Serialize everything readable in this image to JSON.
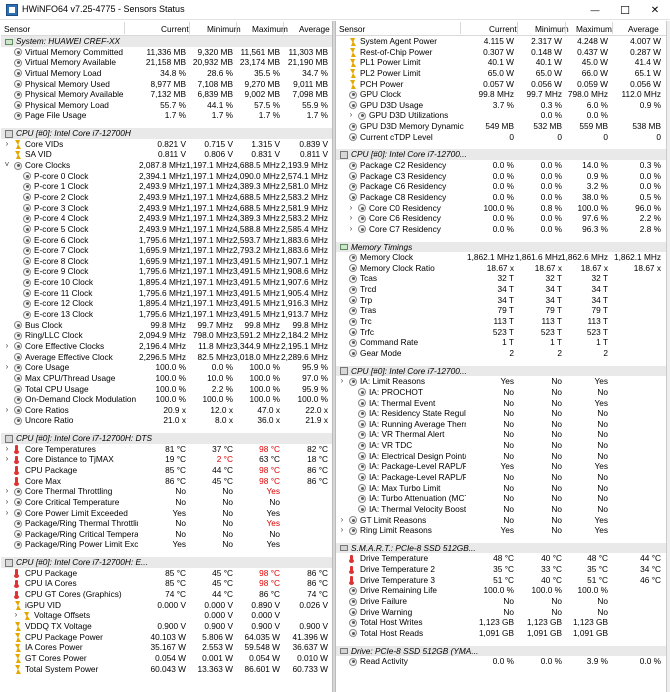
{
  "window": {
    "title": "HWiNFO64 v7.25-4775 - Sensors Status",
    "minimize": "—",
    "maximize": "☐",
    "close": "✕"
  },
  "header": {
    "sensor": "Sensor",
    "current": "Current",
    "minimum": "Minimum",
    "maximum": "Maximum",
    "average": "Average"
  },
  "colors": {
    "section_bg": "#e9e9e9",
    "alert": "#e00000",
    "voltage_icon": "#e6a800",
    "thermo_icon": "#d33"
  },
  "left": [
    {
      "type": "section",
      "icon": "mem",
      "label": "System: HUAWEI CREF-XX"
    },
    {
      "icon": "sens",
      "label": "Virtual Memory Committed",
      "cur": "11,336 MB",
      "min": "9,320 MB",
      "max": "11,561 MB",
      "avg": "11,303 MB"
    },
    {
      "icon": "sens",
      "label": "Virtual Memory Available",
      "cur": "21,158 MB",
      "min": "20,932 MB",
      "max": "23,174 MB",
      "avg": "21,190 MB"
    },
    {
      "icon": "sens",
      "label": "Virtual Memory Load",
      "cur": "34.8 %",
      "min": "28.6 %",
      "max": "35.5 %",
      "avg": "34.7 %"
    },
    {
      "icon": "sens",
      "label": "Physical Memory Used",
      "cur": "8,977 MB",
      "min": "7,108 MB",
      "max": "9,270 MB",
      "avg": "9,011 MB"
    },
    {
      "icon": "sens",
      "label": "Physical Memory Available",
      "cur": "7,132 MB",
      "min": "6,839 MB",
      "max": "9,002 MB",
      "avg": "7,098 MB"
    },
    {
      "icon": "sens",
      "label": "Physical Memory Load",
      "cur": "55.7 %",
      "min": "44.1 %",
      "max": "57.5 %",
      "avg": "55.9 %"
    },
    {
      "icon": "sens",
      "label": "Page File Usage",
      "cur": "1.7 %",
      "min": "1.7 %",
      "max": "1.7 %",
      "avg": "1.7 %"
    },
    {
      "type": "gap"
    },
    {
      "type": "section",
      "icon": "cpu",
      "label": "CPU [#0]: Intel Core i7-12700H"
    },
    {
      "exp": ">",
      "icon": "volt",
      "label": "Core VIDs",
      "cur": "0.821 V",
      "min": "0.715 V",
      "max": "1.315 V",
      "avg": "0.839 V"
    },
    {
      "icon": "volt",
      "label": "SA VID",
      "cur": "0.811 V",
      "min": "0.806 V",
      "max": "0.831 V",
      "avg": "0.811 V"
    },
    {
      "exp": "v",
      "icon": "sens",
      "label": "Core Clocks",
      "cur": "2,087.8 MHz",
      "min": "1,197.1 MHz",
      "max": "4,688.5 MHz",
      "avg": "2,193.9 MHz"
    },
    {
      "indent": 1,
      "icon": "sens",
      "label": "P-core 0 Clock",
      "cur": "2,394.1 MHz",
      "min": "1,197.1 MHz",
      "max": "4,090.0 MHz",
      "avg": "2,574.1 MHz"
    },
    {
      "indent": 1,
      "icon": "sens",
      "label": "P-core 1 Clock",
      "cur": "2,493.9 MHz",
      "min": "1,197.1 MHz",
      "max": "4,389.3 MHz",
      "avg": "2,581.0 MHz"
    },
    {
      "indent": 1,
      "icon": "sens",
      "label": "P-core 2 Clock",
      "cur": "2,493.9 MHz",
      "min": "1,197.1 MHz",
      "max": "4,688.5 MHz",
      "avg": "2,583.2 MHz"
    },
    {
      "indent": 1,
      "icon": "sens",
      "label": "P-core 3 Clock",
      "cur": "2,493.9 MHz",
      "min": "1,197.1 MHz",
      "max": "4,688.5 MHz",
      "avg": "2,581.9 MHz"
    },
    {
      "indent": 1,
      "icon": "sens",
      "label": "P-core 4 Clock",
      "cur": "2,493.9 MHz",
      "min": "1,197.1 MHz",
      "max": "4,389.3 MHz",
      "avg": "2,583.2 MHz"
    },
    {
      "indent": 1,
      "icon": "sens",
      "label": "P-core 5 Clock",
      "cur": "2,493.9 MHz",
      "min": "1,197.1 MHz",
      "max": "4,588.8 MHz",
      "avg": "2,585.4 MHz"
    },
    {
      "indent": 1,
      "icon": "sens",
      "label": "E-core 6 Clock",
      "cur": "1,795.6 MHz",
      "min": "1,197.1 MHz",
      "max": "2,593.7 MHz",
      "avg": "1,883.6 MHz"
    },
    {
      "indent": 1,
      "icon": "sens",
      "label": "E-core 7 Clock",
      "cur": "1,695.9 MHz",
      "min": "1,197.1 MHz",
      "max": "2,793.2 MHz",
      "avg": "1,883.6 MHz"
    },
    {
      "indent": 1,
      "icon": "sens",
      "label": "E-core 8 Clock",
      "cur": "1,695.9 MHz",
      "min": "1,197.1 MHz",
      "max": "3,491.5 MHz",
      "avg": "1,907.1 MHz"
    },
    {
      "indent": 1,
      "icon": "sens",
      "label": "E-core 9 Clock",
      "cur": "1,795.6 MHz",
      "min": "1,197.1 MHz",
      "max": "3,491.5 MHz",
      "avg": "1,908.6 MHz"
    },
    {
      "indent": 1,
      "icon": "sens",
      "label": "E-core 10 Clock",
      "cur": "1,895.4 MHz",
      "min": "1,197.1 MHz",
      "max": "3,491.5 MHz",
      "avg": "1,907.6 MHz"
    },
    {
      "indent": 1,
      "icon": "sens",
      "label": "E-core 11 Clock",
      "cur": "1,795.6 MHz",
      "min": "1,197.1 MHz",
      "max": "3,491.5 MHz",
      "avg": "1,905.4 MHz"
    },
    {
      "indent": 1,
      "icon": "sens",
      "label": "E-core 12 Clock",
      "cur": "1,895.4 MHz",
      "min": "1,197.1 MHz",
      "max": "3,491.5 MHz",
      "avg": "1,916.3 MHz"
    },
    {
      "indent": 1,
      "icon": "sens",
      "label": "E-core 13 Clock",
      "cur": "1,795.6 MHz",
      "min": "1,197.1 MHz",
      "max": "3,491.5 MHz",
      "avg": "1,913.7 MHz"
    },
    {
      "icon": "sens",
      "label": "Bus Clock",
      "cur": "99.8 MHz",
      "min": "99.7 MHz",
      "max": "99.8 MHz",
      "avg": "99.8 MHz"
    },
    {
      "icon": "sens",
      "label": "Ring/LLC Clock",
      "cur": "2,094.9 MHz",
      "min": "798.0 MHz",
      "max": "3,591.2 MHz",
      "avg": "2,184.2 MHz"
    },
    {
      "exp": ">",
      "icon": "sens",
      "label": "Core Effective Clocks",
      "cur": "2,196.4 MHz",
      "min": "11.8 MHz",
      "max": "3,344.9 MHz",
      "avg": "2,195.1 MHz"
    },
    {
      "icon": "sens",
      "label": "Average Effective Clock",
      "cur": "2,296.5 MHz",
      "min": "82.5 MHz",
      "max": "3,018.0 MHz",
      "avg": "2,289.6 MHz"
    },
    {
      "exp": ">",
      "icon": "sens",
      "label": "Core Usage",
      "cur": "100.0 %",
      "min": "0.0 %",
      "max": "100.0 %",
      "avg": "95.9 %"
    },
    {
      "icon": "sens",
      "label": "Max CPU/Thread Usage",
      "cur": "100.0 %",
      "min": "10.0 %",
      "max": "100.0 %",
      "avg": "97.0 %"
    },
    {
      "icon": "sens",
      "label": "Total CPU Usage",
      "cur": "100.0 %",
      "min": "2.2 %",
      "max": "100.0 %",
      "avg": "95.9 %"
    },
    {
      "icon": "sens",
      "label": "On-Demand Clock Modulation",
      "cur": "100.0 %",
      "min": "100.0 %",
      "max": "100.0 %",
      "avg": "100.0 %"
    },
    {
      "exp": ">",
      "icon": "sens",
      "label": "Core Ratios",
      "cur": "20.9 x",
      "min": "12.0 x",
      "max": "47.0 x",
      "avg": "22.0 x"
    },
    {
      "icon": "sens",
      "label": "Uncore Ratio",
      "cur": "21.0 x",
      "min": "8.0 x",
      "max": "36.0 x",
      "avg": "21.9 x"
    },
    {
      "type": "gap"
    },
    {
      "type": "section",
      "icon": "cpu",
      "label": "CPU [#0]: Intel Core i7-12700H: DTS"
    },
    {
      "exp": ">",
      "icon": "therm",
      "label": "Core Temperatures",
      "cur": "81 °C",
      "min": "37 °C",
      "max": "98 °C",
      "avg": "82 °C",
      "maxRed": true
    },
    {
      "exp": ">",
      "icon": "therm",
      "label": "Core Distance to TjMAX",
      "cur": "19 °C",
      "min": "2 °C",
      "max": "63 °C",
      "avg": "18 °C",
      "minRed": true
    },
    {
      "icon": "therm",
      "label": "CPU Package",
      "cur": "85 °C",
      "min": "44 °C",
      "max": "98 °C",
      "avg": "86 °C",
      "maxRed": true
    },
    {
      "icon": "therm",
      "label": "Core Max",
      "cur": "86 °C",
      "min": "45 °C",
      "max": "98 °C",
      "avg": "86 °C",
      "maxRed": true
    },
    {
      "exp": ">",
      "icon": "sens",
      "label": "Core Thermal Throttling",
      "cur": "No",
      "min": "No",
      "max": "Yes",
      "avg": "",
      "maxRed": true
    },
    {
      "exp": ">",
      "icon": "sens",
      "label": "Core Critical Temperature",
      "cur": "No",
      "min": "No",
      "max": "No",
      "avg": ""
    },
    {
      "exp": ">",
      "icon": "sens",
      "label": "Core Power Limit Exceeded",
      "cur": "Yes",
      "min": "No",
      "max": "Yes",
      "avg": ""
    },
    {
      "icon": "sens",
      "label": "Package/Ring Thermal Throttling",
      "cur": "No",
      "min": "No",
      "max": "Yes",
      "avg": "",
      "maxRed": true
    },
    {
      "icon": "sens",
      "label": "Package/Ring Critical Temperature",
      "cur": "No",
      "min": "No",
      "max": "No",
      "avg": ""
    },
    {
      "icon": "sens",
      "label": "Package/Ring Power Limit Exceeded",
      "cur": "Yes",
      "min": "No",
      "max": "Yes",
      "avg": ""
    },
    {
      "type": "gap"
    },
    {
      "type": "section",
      "icon": "cpu",
      "label": "CPU [#0]: Intel Core i7-12700H: E..."
    },
    {
      "icon": "therm",
      "label": "CPU Package",
      "cur": "85 °C",
      "min": "45 °C",
      "max": "98 °C",
      "avg": "86 °C",
      "maxRed": true
    },
    {
      "icon": "therm",
      "label": "CPU IA Cores",
      "cur": "85 °C",
      "min": "45 °C",
      "max": "98 °C",
      "avg": "86 °C",
      "maxRed": true
    },
    {
      "icon": "therm",
      "label": "CPU GT Cores (Graphics)",
      "cur": "74 °C",
      "min": "44 °C",
      "max": "86 °C",
      "avg": "74 °C"
    },
    {
      "icon": "volt",
      "label": "iGPU VID",
      "cur": "0.000 V",
      "min": "0.000 V",
      "max": "0.890 V",
      "avg": "0.026 V"
    },
    {
      "exp": ">",
      "icon": "volt",
      "indent": 1,
      "label": "Voltage Offsets",
      "cur": "",
      "min": "0.000 V",
      "max": "0.000 V",
      "avg": ""
    },
    {
      "icon": "volt",
      "label": "VDDQ TX Voltage",
      "cur": "0.900 V",
      "min": "0.900 V",
      "max": "0.900 V",
      "avg": "0.900 V"
    },
    {
      "icon": "volt",
      "label": "CPU Package Power",
      "cur": "40.103 W",
      "min": "5.806 W",
      "max": "64.035 W",
      "avg": "41.396 W"
    },
    {
      "icon": "volt",
      "label": "IA Cores Power",
      "cur": "35.167 W",
      "min": "2.553 W",
      "max": "59.548 W",
      "avg": "36.637 W"
    },
    {
      "icon": "volt",
      "label": "GT Cores Power",
      "cur": "0.054 W",
      "min": "0.001 W",
      "max": "0.054 W",
      "avg": "0.010 W"
    },
    {
      "icon": "volt",
      "label": "Total System Power",
      "cur": "60.043 W",
      "min": "13.363 W",
      "max": "86.601 W",
      "avg": "60.733 W"
    }
  ],
  "right": [
    {
      "icon": "volt",
      "label": "System Agent Power",
      "cur": "4.115 W",
      "min": "2.317 W",
      "max": "4.248 W",
      "avg": "4.007 W"
    },
    {
      "icon": "volt",
      "label": "Rest-of-Chip Power",
      "cur": "0.307 W",
      "min": "0.148 W",
      "max": "0.437 W",
      "avg": "0.287 W"
    },
    {
      "icon": "volt",
      "label": "PL1 Power Limit",
      "cur": "40.1 W",
      "min": "40.1 W",
      "max": "45.0 W",
      "avg": "41.4 W"
    },
    {
      "icon": "volt",
      "label": "PL2 Power Limit",
      "cur": "65.0 W",
      "min": "65.0 W",
      "max": "66.0 W",
      "avg": "65.1 W"
    },
    {
      "icon": "volt",
      "label": "PCH Power",
      "cur": "0.057 W",
      "min": "0.056 W",
      "max": "0.059 W",
      "avg": "0.056 W"
    },
    {
      "icon": "sens",
      "label": "GPU Clock",
      "cur": "99.8 MHz",
      "min": "99.7 MHz",
      "max": "798.0 MHz",
      "avg": "112.0 MHz"
    },
    {
      "icon": "sens",
      "label": "GPU D3D Usage",
      "cur": "3.7 %",
      "min": "0.3 %",
      "max": "6.0 %",
      "avg": "0.9 %"
    },
    {
      "exp": ">",
      "indent": 1,
      "icon": "sens",
      "label": "GPU D3D Utilizations",
      "cur": "",
      "min": "0.0 %",
      "max": "0.0 %",
      "avg": ""
    },
    {
      "icon": "sens",
      "label": "GPU D3D Memory Dynamic",
      "cur": "549 MB",
      "min": "532 MB",
      "max": "559 MB",
      "avg": "538 MB"
    },
    {
      "icon": "sens",
      "label": "Current cTDP Level",
      "cur": "0",
      "min": "0",
      "max": "0",
      "avg": "0"
    },
    {
      "type": "gap"
    },
    {
      "type": "section",
      "icon": "cpu",
      "label": "CPU [#0]: Intel Core i7-12700..."
    },
    {
      "icon": "sens",
      "label": "Package C2 Residency",
      "cur": "0.0 %",
      "min": "0.0 %",
      "max": "14.0 %",
      "avg": "0.3 %"
    },
    {
      "icon": "sens",
      "label": "Package C3 Residency",
      "cur": "0.0 %",
      "min": "0.0 %",
      "max": "0.9 %",
      "avg": "0.0 %"
    },
    {
      "icon": "sens",
      "label": "Package C6 Residency",
      "cur": "0.0 %",
      "min": "0.0 %",
      "max": "3.2 %",
      "avg": "0.0 %"
    },
    {
      "icon": "sens",
      "label": "Package C8 Residency",
      "cur": "0.0 %",
      "min": "0.0 %",
      "max": "38.0 %",
      "avg": "0.5 %"
    },
    {
      "exp": ">",
      "indent": 1,
      "icon": "sens",
      "label": "Core C0 Residency",
      "cur": "100.0 %",
      "min": "0.8 %",
      "max": "100.0 %",
      "avg": "96.0 %"
    },
    {
      "exp": ">",
      "indent": 1,
      "icon": "sens",
      "label": "Core C6 Residency",
      "cur": "0.0 %",
      "min": "0.0 %",
      "max": "97.6 %",
      "avg": "2.2 %"
    },
    {
      "exp": ">",
      "indent": 1,
      "icon": "sens",
      "label": "Core C7 Residency",
      "cur": "0.0 %",
      "min": "0.0 %",
      "max": "96.3 %",
      "avg": "2.8 %"
    },
    {
      "type": "gap"
    },
    {
      "type": "section",
      "icon": "mem",
      "label": "Memory Timings"
    },
    {
      "icon": "sens",
      "label": "Memory Clock",
      "cur": "1,862.1 MHz",
      "min": "1,861.6 MHz",
      "max": "1,862.6 MHz",
      "avg": "1,862.1 MHz"
    },
    {
      "icon": "sens",
      "label": "Memory Clock Ratio",
      "cur": "18.67 x",
      "min": "18.67 x",
      "max": "18.67 x",
      "avg": "18.67 x"
    },
    {
      "icon": "sens",
      "label": "Tcas",
      "cur": "32 T",
      "min": "32 T",
      "max": "32 T",
      "avg": ""
    },
    {
      "icon": "sens",
      "label": "Trcd",
      "cur": "34 T",
      "min": "34 T",
      "max": "34 T",
      "avg": ""
    },
    {
      "icon": "sens",
      "label": "Trp",
      "cur": "34 T",
      "min": "34 T",
      "max": "34 T",
      "avg": ""
    },
    {
      "icon": "sens",
      "label": "Tras",
      "cur": "79 T",
      "min": "79 T",
      "max": "79 T",
      "avg": ""
    },
    {
      "icon": "sens",
      "label": "Trc",
      "cur": "113 T",
      "min": "113 T",
      "max": "113 T",
      "avg": ""
    },
    {
      "icon": "sens",
      "label": "Trfc",
      "cur": "523 T",
      "min": "523 T",
      "max": "523 T",
      "avg": ""
    },
    {
      "icon": "sens",
      "label": "Command Rate",
      "cur": "1 T",
      "min": "1 T",
      "max": "1 T",
      "avg": ""
    },
    {
      "icon": "sens",
      "label": "Gear Mode",
      "cur": "2",
      "min": "2",
      "max": "2",
      "avg": ""
    },
    {
      "type": "gap"
    },
    {
      "type": "section",
      "icon": "cpu",
      "label": "CPU [#0]: Intel Core i7-12700..."
    },
    {
      "exp": ">",
      "icon": "sens",
      "label": "IA: Limit Reasons",
      "cur": "Yes",
      "min": "No",
      "max": "Yes",
      "avg": ""
    },
    {
      "indent": 1,
      "icon": "sens",
      "label": "IA: PROCHOT",
      "cur": "No",
      "min": "No",
      "max": "No",
      "avg": ""
    },
    {
      "indent": 1,
      "icon": "sens",
      "label": "IA: Thermal Event",
      "cur": "No",
      "min": "No",
      "max": "Yes",
      "avg": ""
    },
    {
      "indent": 1,
      "icon": "sens",
      "label": "IA: Residency State Regula...",
      "cur": "No",
      "min": "No",
      "max": "No",
      "avg": ""
    },
    {
      "indent": 1,
      "icon": "sens",
      "label": "IA: Running Average Therm...",
      "cur": "No",
      "min": "No",
      "max": "No",
      "avg": ""
    },
    {
      "indent": 1,
      "icon": "sens",
      "label": "IA: VR Thermal Alert",
      "cur": "No",
      "min": "No",
      "max": "No",
      "avg": ""
    },
    {
      "indent": 1,
      "icon": "sens",
      "label": "IA: VR TDC",
      "cur": "No",
      "min": "No",
      "max": "No",
      "avg": ""
    },
    {
      "indent": 1,
      "icon": "sens",
      "label": "IA: Electrical Design Point/O...",
      "cur": "No",
      "min": "No",
      "max": "No",
      "avg": ""
    },
    {
      "indent": 1,
      "icon": "sens",
      "label": "IA: Package-Level RAPL/PB...",
      "cur": "Yes",
      "min": "No",
      "max": "Yes",
      "avg": ""
    },
    {
      "indent": 1,
      "icon": "sens",
      "label": "IA: Package-Level RAPL/PB...",
      "cur": "No",
      "min": "No",
      "max": "No",
      "avg": ""
    },
    {
      "indent": 1,
      "icon": "sens",
      "label": "IA: Max Turbo Limit",
      "cur": "No",
      "min": "No",
      "max": "No",
      "avg": ""
    },
    {
      "indent": 1,
      "icon": "sens",
      "label": "IA: Turbo Attenuation (MCT)",
      "cur": "No",
      "min": "No",
      "max": "No",
      "avg": ""
    },
    {
      "indent": 1,
      "icon": "sens",
      "label": "IA: Thermal Velocity Boost",
      "cur": "No",
      "min": "No",
      "max": "No",
      "avg": ""
    },
    {
      "exp": ">",
      "icon": "sens",
      "label": "GT Limit Reasons",
      "cur": "No",
      "min": "No",
      "max": "Yes",
      "avg": ""
    },
    {
      "exp": ">",
      "icon": "sens",
      "label": "Ring Limit Reasons",
      "cur": "Yes",
      "min": "No",
      "max": "Yes",
      "avg": ""
    },
    {
      "type": "gap"
    },
    {
      "type": "section",
      "icon": "drive",
      "label": "S.M.A.R.T.: PCIe-8 SSD 512GB..."
    },
    {
      "icon": "therm",
      "label": "Drive Temperature",
      "cur": "48 °C",
      "min": "40 °C",
      "max": "48 °C",
      "avg": "44 °C"
    },
    {
      "icon": "therm",
      "label": "Drive Temperature 2",
      "cur": "35 °C",
      "min": "33 °C",
      "max": "35 °C",
      "avg": "34 °C"
    },
    {
      "icon": "therm",
      "label": "Drive Temperature 3",
      "cur": "51 °C",
      "min": "40 °C",
      "max": "51 °C",
      "avg": "46 °C"
    },
    {
      "icon": "sens",
      "label": "Drive Remaining Life",
      "cur": "100.0 %",
      "min": "100.0 %",
      "max": "100.0 %",
      "avg": ""
    },
    {
      "icon": "sens",
      "label": "Drive Failure",
      "cur": "No",
      "min": "No",
      "max": "No",
      "avg": ""
    },
    {
      "icon": "sens",
      "label": "Drive Warning",
      "cur": "No",
      "min": "No",
      "max": "No",
      "avg": ""
    },
    {
      "icon": "sens",
      "label": "Total Host Writes",
      "cur": "1,123 GB",
      "min": "1,123 GB",
      "max": "1,123 GB",
      "avg": ""
    },
    {
      "icon": "sens",
      "label": "Total Host Reads",
      "cur": "1,091 GB",
      "min": "1,091 GB",
      "max": "1,091 GB",
      "avg": ""
    },
    {
      "type": "gap"
    },
    {
      "type": "section",
      "icon": "drive",
      "label": "Drive: PCIe-8 SSD 512GB (YMA..."
    },
    {
      "icon": "sens",
      "label": "Read Activity",
      "cur": "0.0 %",
      "min": "0.0 %",
      "max": "3.9 %",
      "avg": "0.0 %"
    }
  ]
}
